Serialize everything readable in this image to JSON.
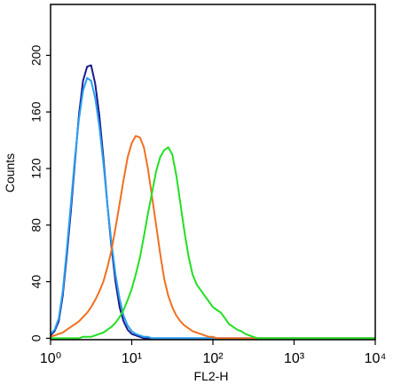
{
  "chart_data": {
    "type": "line",
    "xlabel": "FL2-H",
    "ylabel": "Counts",
    "xscale": "log",
    "x": [
      1,
      1.12,
      1.26,
      1.41,
      1.58,
      1.78,
      2,
      2.24,
      2.51,
      2.82,
      3.16,
      3.55,
      3.98,
      4.47,
      5.01,
      5.62,
      6.31,
      7.08,
      7.94,
      8.91,
      10,
      11.2,
      12.6,
      14.1,
      15.8,
      17.8,
      20,
      22.4,
      25.1,
      28.2,
      31.6,
      35.5,
      39.8,
      44.7,
      50.1,
      56.2,
      63.1,
      70.8,
      79.4,
      89.1,
      100,
      112,
      126,
      141,
      158,
      178,
      200,
      224,
      251,
      282,
      316,
      355,
      398,
      447,
      501,
      562,
      631,
      708,
      794,
      891,
      1000,
      3162,
      10000
    ],
    "series": [
      {
        "color": "#1a1a8c",
        "values": [
          2,
          5,
          12,
          30,
          58,
          90,
          125,
          158,
          182,
          192,
          193,
          180,
          158,
          128,
          95,
          65,
          40,
          22,
          12,
          6,
          3,
          2,
          1,
          0,
          0,
          0,
          0,
          0,
          0,
          0,
          0,
          0,
          0,
          0,
          0,
          0,
          0,
          0,
          0,
          0,
          0,
          0,
          0,
          0,
          0,
          0,
          0,
          0,
          0,
          0,
          0,
          0,
          0,
          0,
          0,
          0,
          0,
          0,
          0,
          0,
          0,
          0,
          0
        ]
      },
      {
        "color": "#2aa0f0",
        "values": [
          3,
          6,
          14,
          33,
          62,
          95,
          128,
          155,
          175,
          184,
          182,
          170,
          150,
          124,
          95,
          68,
          45,
          28,
          16,
          9,
          5,
          3,
          2,
          1,
          1,
          0,
          0,
          0,
          0,
          0,
          0,
          0,
          0,
          0,
          0,
          0,
          0,
          0,
          0,
          0,
          0,
          0,
          0,
          0,
          0,
          0,
          0,
          0,
          0,
          0,
          0,
          0,
          0,
          0,
          0,
          0,
          0,
          0,
          0,
          0,
          0,
          0,
          0
        ]
      },
      {
        "color": "#f07020",
        "values": [
          1,
          2,
          3,
          4,
          6,
          8,
          10,
          12,
          15,
          18,
          22,
          27,
          33,
          40,
          50,
          62,
          78,
          95,
          112,
          128,
          138,
          143,
          142,
          135,
          120,
          100,
          80,
          60,
          42,
          30,
          22,
          16,
          12,
          9,
          7,
          5,
          4,
          3,
          2,
          1,
          1,
          0,
          0,
          0,
          0,
          0,
          0,
          0,
          0,
          0,
          0,
          0,
          0,
          0,
          0,
          0,
          0,
          0,
          0,
          0,
          0,
          0,
          0
        ]
      },
      {
        "color": "#22e022",
        "values": [
          0,
          0,
          0,
          0,
          0,
          0,
          0,
          0,
          1,
          1,
          1,
          2,
          3,
          4,
          6,
          8,
          11,
          15,
          20,
          27,
          35,
          45,
          57,
          72,
          88,
          103,
          118,
          128,
          133,
          135,
          130,
          115,
          95,
          75,
          58,
          45,
          38,
          34,
          30,
          26,
          22,
          20,
          18,
          14,
          10,
          8,
          6,
          5,
          3,
          2,
          1,
          0,
          0,
          0,
          0,
          0,
          0,
          0,
          0,
          0,
          0,
          0,
          0
        ]
      }
    ],
    "xlim": [
      1,
      10000
    ],
    "xticks": [
      {
        "value": 1,
        "label": "10⁰"
      },
      {
        "value": 10,
        "label": "10¹"
      },
      {
        "value": 100,
        "label": "10²"
      },
      {
        "value": 1000,
        "label": "10³"
      },
      {
        "value": 10000,
        "label": "10⁴"
      }
    ],
    "ylim": [
      -1,
      236
    ],
    "yticks": [
      0,
      40,
      80,
      120,
      160,
      200
    ]
  }
}
